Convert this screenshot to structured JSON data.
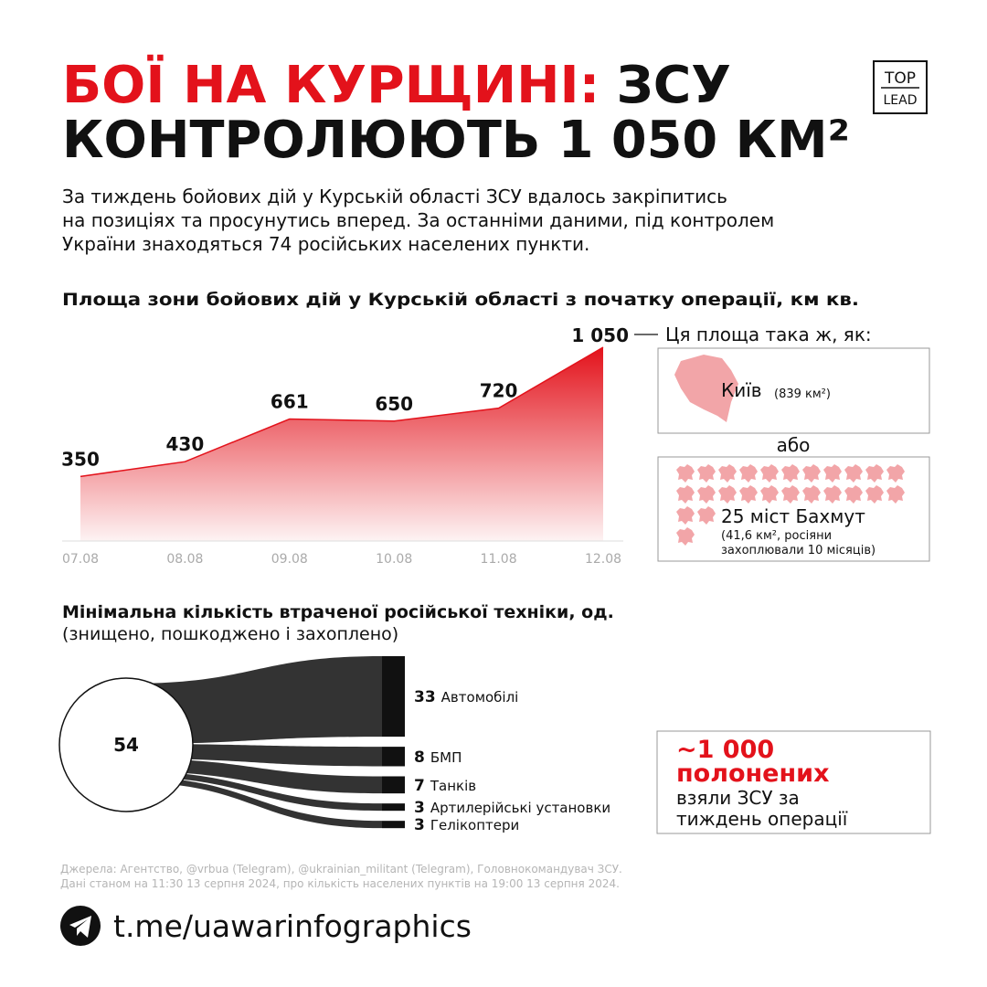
{
  "header": {
    "title_red": "БОЇ НА КУРЩИНІ:",
    "title_black": "ЗСУ",
    "title_line2": "КОНТРОЛЮЮТЬ 1 050 КМ²",
    "logo_top": "TOP",
    "logo_bottom": "LEAD"
  },
  "intro": [
    "За тиждень бойових дій у Курській області ЗСУ вдалось закріпитись",
    "на позиціях та просунутись вперед. За останніми даними, під контролем",
    "України знаходяться 74 російських населених пункти."
  ],
  "chart_data": [
    {
      "type": "area",
      "title": "Площа зони бойових дій у Курській області з початку операції, км кв.",
      "categories": [
        "07.08",
        "08.08",
        "09.08",
        "10.08",
        "11.08",
        "12.08"
      ],
      "values": [
        350,
        430,
        661,
        650,
        720,
        1050
      ],
      "value_labels": [
        "350",
        "430",
        "661",
        "650",
        "720",
        "1 050"
      ],
      "color": "#e3121b"
    },
    {
      "type": "sankey",
      "title": "Мінімальна кількість втраченої російської техніки, од.",
      "subtitle": "(знищено, пошкоджено і захоплено)",
      "total": 54,
      "categories": [
        "Автомобілі",
        "БМП",
        "Танків",
        "Артилерійські установки",
        "Гелікоптери"
      ],
      "values": [
        33,
        8,
        7,
        3,
        3
      ],
      "color": "#333333"
    }
  ],
  "comparison": {
    "lead": "Ця площа така ж, як:",
    "kyiv": "Київ",
    "kyiv_area": "(839 км²)",
    "or": "або",
    "bakhmut": "25 міст Бахмут",
    "bakhmut_note": [
      "(41,6 км², росіяни",
      "захоплювали 10 місяців)"
    ]
  },
  "prisoners": {
    "number": "~1 000",
    "word": "полонених",
    "text": [
      "взяли ЗСУ за",
      "тиждень операції"
    ]
  },
  "sources": [
    "Джерела: Агентство, @vrbua (Telegram), @ukrainian_militant (Telegram), Головнокомандувач ЗСУ.",
    "Дані станом на 11:30 13 серпня 2024, про кількість населених пунктів на 19:00 13 серпня 2024."
  ],
  "footer": {
    "link": "t.me/uawarinfographics"
  }
}
